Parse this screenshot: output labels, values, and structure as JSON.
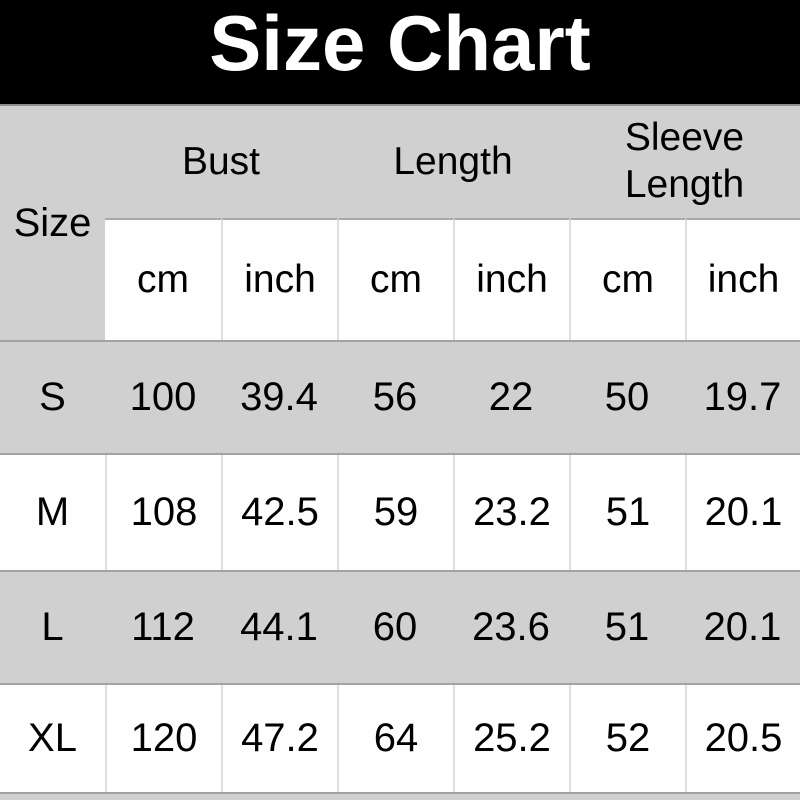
{
  "title": "Size Chart",
  "table": {
    "corner_label": "Size",
    "groups": [
      {
        "label": "Bust"
      },
      {
        "label": "Length"
      },
      {
        "label": "Sleeve Length"
      }
    ],
    "units": [
      "cm",
      "inch",
      "cm",
      "inch",
      "cm",
      "inch"
    ],
    "rows": [
      {
        "size": "S",
        "values": [
          "100",
          "39.4",
          "56",
          "22",
          "50",
          "19.7"
        ]
      },
      {
        "size": "M",
        "values": [
          "108",
          "42.5",
          "59",
          "23.2",
          "51",
          "20.1"
        ]
      },
      {
        "size": "L",
        "values": [
          "112",
          "44.1",
          "60",
          "23.6",
          "51",
          "20.1"
        ]
      },
      {
        "size": "XL",
        "values": [
          "120",
          "47.2",
          "64",
          "25.2",
          "52",
          "20.5"
        ]
      }
    ]
  },
  "chart_data": {
    "type": "table",
    "title": "Size Chart",
    "columns": [
      "Size",
      "Bust cm",
      "Bust inch",
      "Length cm",
      "Length inch",
      "Sleeve Length cm",
      "Sleeve Length inch"
    ],
    "rows": [
      [
        "S",
        100,
        39.4,
        56,
        22,
        50,
        19.7
      ],
      [
        "M",
        108,
        42.5,
        59,
        23.2,
        51,
        20.1
      ],
      [
        "L",
        112,
        44.1,
        60,
        23.6,
        51,
        20.1
      ],
      [
        "XL",
        120,
        47.2,
        64,
        25.2,
        52,
        20.5
      ]
    ]
  },
  "colors": {
    "banner_bg": "#000000",
    "banner_text": "#ffffff",
    "row_gray": "#d0d0d0",
    "row_white": "#fefefe",
    "row_border": "#a3a3a3",
    "cell_divider": "#dedede",
    "text": "#000000"
  }
}
